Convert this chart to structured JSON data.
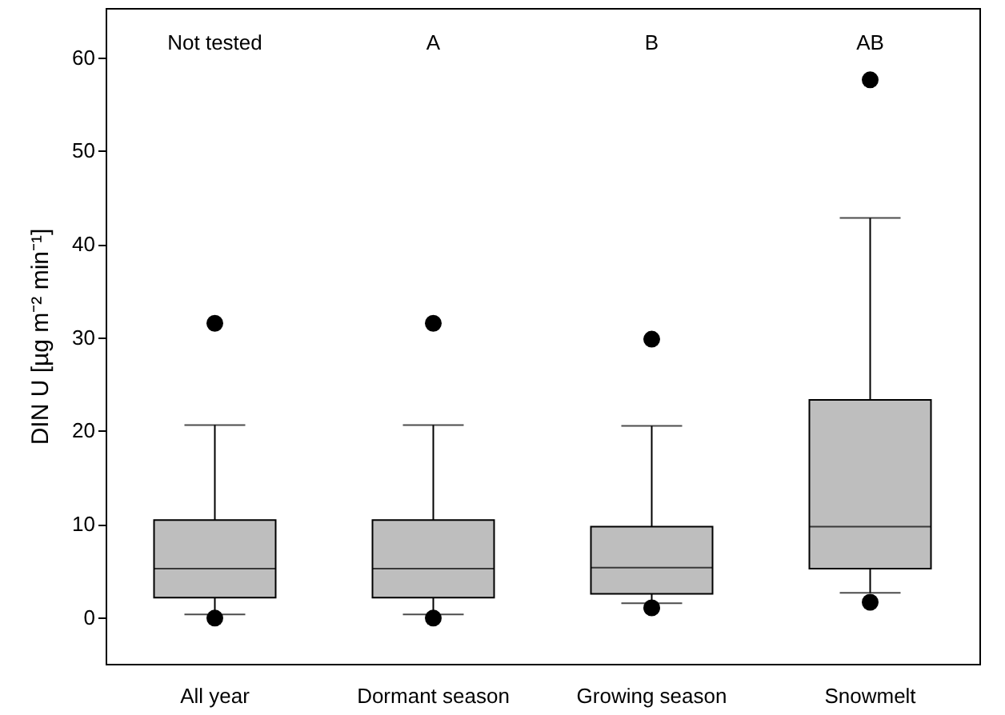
{
  "chart_data": {
    "type": "box",
    "ylabel": "DIN U  [µg m⁻² min⁻¹]",
    "categories": [
      "All year",
      "Dormant season",
      "Growing season",
      "Snowmelt"
    ],
    "series": [
      {
        "color": "#bebebe",
        "boxes": [
          {
            "low": 0.3,
            "q1": 2.1,
            "median": 5.2,
            "q3": 10.4,
            "high": 20.6,
            "outliers": [
              31.5,
              -0.1
            ]
          },
          {
            "low": 0.3,
            "q1": 2.1,
            "median": 5.2,
            "q3": 10.4,
            "high": 20.6,
            "outliers": [
              31.5,
              -0.1
            ]
          },
          {
            "low": 1.5,
            "q1": 2.5,
            "median": 5.3,
            "q3": 9.7,
            "high": 20.5,
            "outliers": [
              29.8,
              1.0
            ]
          },
          {
            "low": 2.6,
            "q1": 5.2,
            "median": 9.7,
            "q3": 23.3,
            "high": 42.8,
            "outliers": [
              57.6,
              1.6
            ]
          }
        ]
      }
    ],
    "ylim": [
      -5,
      65.3
    ],
    "yticks": [
      0,
      10,
      20,
      30,
      40,
      50,
      60
    ],
    "annotations": [
      "Not tested",
      "A",
      "B",
      "AB"
    ]
  }
}
